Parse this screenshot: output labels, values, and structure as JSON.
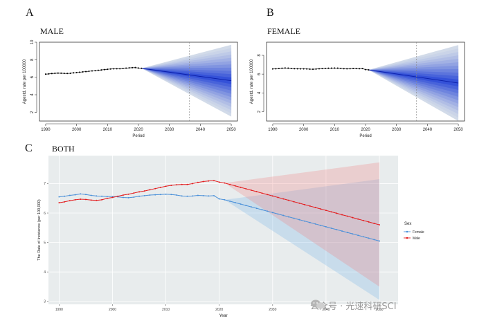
{
  "panels": {
    "a": {
      "letter": "A",
      "title": "MALE"
    },
    "b": {
      "letter": "B",
      "title": "FEMALE"
    },
    "c": {
      "letter": "C",
      "title": "BOTH"
    }
  },
  "watermark": {
    "text": "公众号 · 光速科研SCI"
  },
  "colors": {
    "male": "#e31a1c",
    "female": "#4a90d9",
    "fan_core": "#1f3fd6",
    "fan_light": "#dbe3ea",
    "panel_bg": "#e8eced"
  },
  "chart_data": [
    {
      "id": "a",
      "type": "line",
      "title": "MALE",
      "xlabel": "Period",
      "ylabel": "Agestd. rate per 100000",
      "xlim": [
        1988,
        2052
      ],
      "ylim": [
        1,
        10
      ],
      "xticks": [
        1990,
        2000,
        2010,
        2020,
        2030,
        2040,
        2050
      ],
      "yticks": [
        2,
        4,
        6,
        8,
        10
      ],
      "vline": 2036.5,
      "observed": {
        "x": [
          1990,
          1991,
          1992,
          1993,
          1994,
          1995,
          1996,
          1997,
          1998,
          1999,
          2000,
          2001,
          2002,
          2003,
          2004,
          2005,
          2006,
          2007,
          2008,
          2009,
          2010,
          2011,
          2012,
          2013,
          2014,
          2015,
          2016,
          2017,
          2018,
          2019,
          2020,
          2021
        ],
        "y": [
          6.35,
          6.38,
          6.42,
          6.45,
          6.47,
          6.46,
          6.44,
          6.43,
          6.45,
          6.5,
          6.53,
          6.57,
          6.61,
          6.64,
          6.68,
          6.72,
          6.75,
          6.79,
          6.83,
          6.87,
          6.91,
          6.94,
          6.96,
          6.97,
          6.97,
          7.0,
          7.04,
          7.07,
          7.09,
          7.1,
          7.05,
          7.02
        ]
      },
      "projection": {
        "start": 2021,
        "end": 2050,
        "start_value": 7.02,
        "end_value": 5.6,
        "end_lower": 1.5,
        "end_upper": 9.7
      }
    },
    {
      "id": "b",
      "type": "line",
      "title": "FEMALE",
      "xlabel": "Period",
      "ylabel": "Agestd. rate per 100000",
      "xlim": [
        1988,
        2052
      ],
      "ylim": [
        1,
        9.4
      ],
      "xticks": [
        1990,
        2000,
        2010,
        2020,
        2030,
        2040,
        2050
      ],
      "yticks": [
        2,
        4,
        6,
        8
      ],
      "vline": 2036.5,
      "observed": {
        "x": [
          1990,
          1991,
          1992,
          1993,
          1994,
          1995,
          1996,
          1997,
          1998,
          1999,
          2000,
          2001,
          2002,
          2003,
          2004,
          2005,
          2006,
          2007,
          2008,
          2009,
          2010,
          2011,
          2012,
          2013,
          2014,
          2015,
          2016,
          2017,
          2018,
          2019,
          2020,
          2021
        ],
        "y": [
          6.55,
          6.57,
          6.6,
          6.62,
          6.65,
          6.63,
          6.6,
          6.58,
          6.57,
          6.56,
          6.56,
          6.55,
          6.53,
          6.52,
          6.54,
          6.57,
          6.59,
          6.61,
          6.62,
          6.63,
          6.64,
          6.63,
          6.61,
          6.58,
          6.57,
          6.58,
          6.6,
          6.59,
          6.58,
          6.59,
          6.48,
          6.45
        ]
      },
      "projection": {
        "start": 2021,
        "end": 2050,
        "start_value": 6.45,
        "end_value": 5.05,
        "end_lower": 1.0,
        "end_upper": 9.1
      }
    },
    {
      "id": "c",
      "type": "line",
      "title": "BOTH",
      "xlabel": "Year",
      "ylabel": "The Rate of Incidence (per 100,000)",
      "xlim": [
        1988,
        2053.5
      ],
      "ylim": [
        2.9,
        7.95
      ],
      "xticks": [
        1990,
        2000,
        2010,
        2020,
        2030,
        2040,
        2050
      ],
      "yticks": [
        3,
        4,
        5,
        6,
        7
      ],
      "legend": {
        "title": "Sex",
        "position": "right",
        "entries": [
          "Female",
          "Male"
        ]
      },
      "series": [
        {
          "name": "Female",
          "color": "#4a90d9",
          "x": [
            1990,
            1991,
            1992,
            1993,
            1994,
            1995,
            1996,
            1997,
            1998,
            1999,
            2000,
            2001,
            2002,
            2003,
            2004,
            2005,
            2006,
            2007,
            2008,
            2009,
            2010,
            2011,
            2012,
            2013,
            2014,
            2015,
            2016,
            2017,
            2018,
            2019,
            2020,
            2021
          ],
          "y": [
            6.55,
            6.57,
            6.6,
            6.62,
            6.65,
            6.63,
            6.6,
            6.58,
            6.57,
            6.56,
            6.56,
            6.55,
            6.53,
            6.52,
            6.54,
            6.57,
            6.59,
            6.61,
            6.62,
            6.63,
            6.64,
            6.63,
            6.61,
            6.58,
            6.57,
            6.58,
            6.6,
            6.59,
            6.58,
            6.59,
            6.48,
            6.45
          ],
          "projection": {
            "x": [
              2021,
              2050
            ],
            "y": [
              6.45,
              5.05
            ],
            "lower": [
              6.45,
              3.05
            ],
            "upper": [
              6.45,
              7.15
            ]
          }
        },
        {
          "name": "Male",
          "color": "#e31a1c",
          "x": [
            1990,
            1991,
            1992,
            1993,
            1994,
            1995,
            1996,
            1997,
            1998,
            1999,
            2000,
            2001,
            2002,
            2003,
            2004,
            2005,
            2006,
            2007,
            2008,
            2009,
            2010,
            2011,
            2012,
            2013,
            2014,
            2015,
            2016,
            2017,
            2018,
            2019,
            2020,
            2021
          ],
          "y": [
            6.35,
            6.38,
            6.42,
            6.45,
            6.47,
            6.46,
            6.44,
            6.43,
            6.45,
            6.5,
            6.53,
            6.57,
            6.61,
            6.64,
            6.68,
            6.72,
            6.75,
            6.79,
            6.83,
            6.87,
            6.91,
            6.94,
            6.96,
            6.97,
            6.97,
            7.0,
            7.04,
            7.07,
            7.09,
            7.1,
            7.05,
            7.02
          ],
          "projection": {
            "x": [
              2021,
              2050
            ],
            "y": [
              7.02,
              5.6
            ],
            "lower": [
              7.02,
              3.5
            ],
            "upper": [
              7.02,
              7.72
            ]
          }
        }
      ]
    }
  ]
}
